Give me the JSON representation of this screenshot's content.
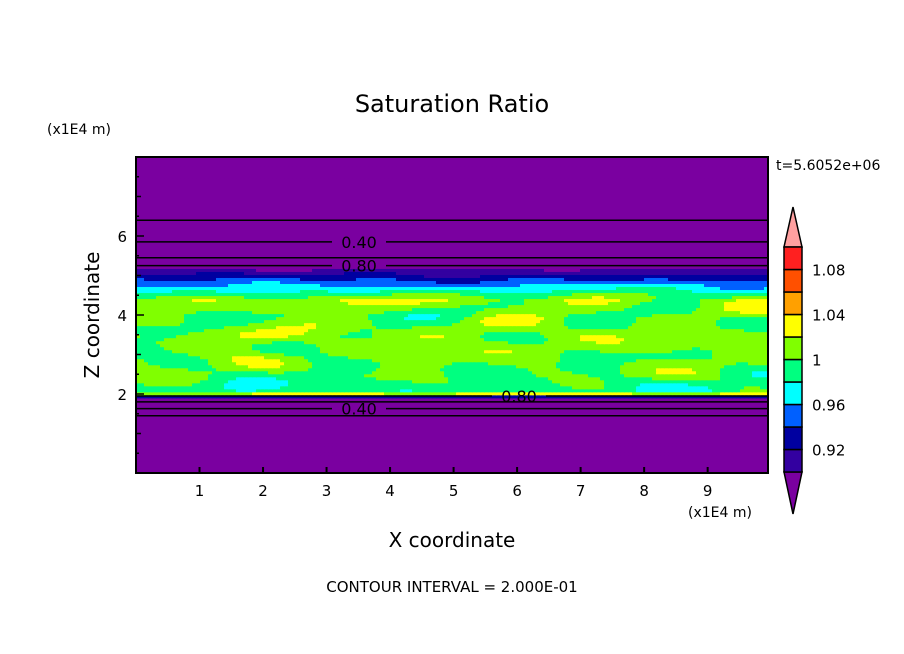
{
  "chart_data": {
    "type": "heatmap",
    "title": "Saturation Ratio",
    "xlabel": "X coordinate",
    "ylabel": "Z coordinate",
    "x_unit": "(x1E4 m)",
    "y_unit": "(x1E4 m)",
    "time_label": "t=5.6052e+06",
    "footer": "CONTOUR INTERVAL = 2.000E-01",
    "xlim": [
      0,
      9.95
    ],
    "ylim": [
      0,
      8
    ],
    "xticks": [
      1,
      2,
      3,
      4,
      5,
      6,
      7,
      8,
      9
    ],
    "yticks": [
      2,
      4,
      6
    ],
    "colorbar": {
      "levels": [
        0.9,
        0.92,
        0.94,
        0.96,
        0.98,
        1.0,
        1.02,
        1.04,
        1.06,
        1.08,
        1.1
      ],
      "colors": [
        "#3300a0",
        "#0000a0",
        "#0060ff",
        "#00ffff",
        "#00ff80",
        "#80ff00",
        "#ffff00",
        "#ffa000",
        "#ff5000",
        "#ff2020"
      ],
      "under_color": "#7a00a0",
      "over_color": "#ffa0a0",
      "tick_labels": [
        {
          "value": 0.92,
          "label": "0.92"
        },
        {
          "value": 0.96,
          "label": "0.96"
        },
        {
          "value": 1.0,
          "label": "1"
        },
        {
          "value": 1.04,
          "label": "1.04"
        },
        {
          "value": 1.08,
          "label": "1.08"
        }
      ]
    },
    "mean_profile": [
      {
        "z": 0,
        "v": 0.1
      },
      {
        "z": 1.4,
        "v": 0.3
      },
      {
        "z": 1.9,
        "v": 0.85
      },
      {
        "z": 2.0,
        "v": 1.03
      },
      {
        "z": 2.1,
        "v": 0.985
      },
      {
        "z": 2.5,
        "v": 1.0
      },
      {
        "z": 3.0,
        "v": 1.005
      },
      {
        "z": 3.5,
        "v": 1.01
      },
      {
        "z": 4.0,
        "v": 1.0
      },
      {
        "z": 4.4,
        "v": 1.015
      },
      {
        "z": 4.65,
        "v": 0.975
      },
      {
        "z": 4.8,
        "v": 0.955
      },
      {
        "z": 5.0,
        "v": 0.925
      },
      {
        "z": 5.15,
        "v": 0.9
      },
      {
        "z": 5.3,
        "v": 0.8
      },
      {
        "z": 5.85,
        "v": 0.4
      },
      {
        "z": 6.4,
        "v": 0.2
      },
      {
        "z": 8,
        "v": 0.05
      }
    ],
    "noise_amp": 0.022,
    "contour_lines": [
      {
        "z": 1.45,
        "label": ""
      },
      {
        "z": 1.63,
        "label": "0.40"
      },
      {
        "z": 1.8,
        "label": ""
      },
      {
        "z": 1.95,
        "label": "0.80"
      },
      {
        "z": 5.25,
        "label": "0.80"
      },
      {
        "z": 5.45,
        "label": ""
      },
      {
        "z": 5.85,
        "label": "0.40"
      },
      {
        "z": 6.4,
        "label": ""
      }
    ],
    "grid": false
  }
}
